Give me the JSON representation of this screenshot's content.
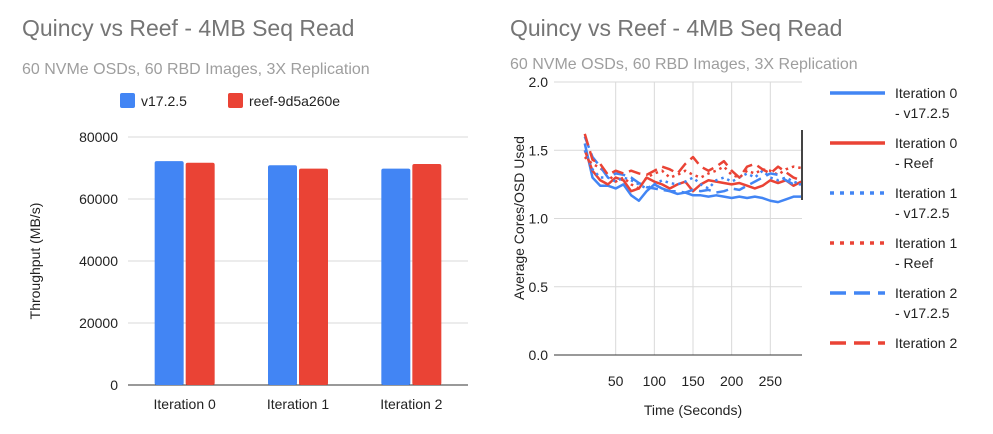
{
  "colors": {
    "v17": "#4285f4",
    "reef": "#ea4335",
    "grid": "#d9d9d9",
    "title": "#757575"
  },
  "chart_data": [
    {
      "type": "bar",
      "title": "Quincy vs Reef - 4MB Seq Read",
      "subtitle": "60 NVMe OSDs, 60 RBD Images, 3X Replication",
      "xlabel": "",
      "ylabel": "Throughput (MB/s)",
      "categories": [
        "Iteration 0",
        "Iteration 1",
        "Iteration 2"
      ],
      "series": [
        {
          "name": "v17.2.5",
          "color": "#4285f4",
          "values": [
            72200,
            70900,
            69800
          ]
        },
        {
          "name": "reef-9d5a260e",
          "color": "#ea4335",
          "values": [
            71700,
            69800,
            71300
          ]
        }
      ],
      "ylim": [
        0,
        80000
      ],
      "yticks": [
        "0",
        "20000",
        "40000",
        "60000",
        "80000"
      ],
      "grid": true,
      "legend": "top"
    },
    {
      "type": "line",
      "title": "Quincy vs Reef - 4MB Seq Read",
      "subtitle": "60 NVMe OSDs, 60 RBD Images, 3X Replication",
      "xlabel": "Time (Seconds)",
      "ylabel": "Average Cores/OSD Used",
      "xlim": [
        9,
        291
      ],
      "ylim": [
        0,
        2.0
      ],
      "xticks": [
        "50",
        "100",
        "150",
        "200",
        "250"
      ],
      "yticks": [
        "0.0",
        "0.5",
        "1.0",
        "1.5",
        "2.0"
      ],
      "grid": true,
      "legend": "right",
      "x": [
        10,
        20,
        30,
        40,
        50,
        60,
        70,
        80,
        90,
        100,
        110,
        120,
        130,
        140,
        150,
        160,
        170,
        180,
        190,
        200,
        210,
        220,
        230,
        240,
        250,
        260,
        270,
        280,
        290
      ],
      "series": [
        {
          "name": "Iteration 0 - v17.2.5",
          "color": "#4285f4",
          "style": "solid",
          "values": [
            1.55,
            1.3,
            1.24,
            1.24,
            1.22,
            1.25,
            1.17,
            1.13,
            1.2,
            1.25,
            1.22,
            1.2,
            1.18,
            1.19,
            1.17,
            1.17,
            1.16,
            1.17,
            1.16,
            1.15,
            1.16,
            1.15,
            1.16,
            1.15,
            1.13,
            1.12,
            1.14,
            1.16,
            1.16
          ]
        },
        {
          "name": "Iteration 0 - Reef",
          "color": "#ea4335",
          "style": "solid",
          "values": [
            1.5,
            1.35,
            1.28,
            1.25,
            1.3,
            1.28,
            1.2,
            1.22,
            1.3,
            1.27,
            1.25,
            1.22,
            1.25,
            1.27,
            1.2,
            1.25,
            1.28,
            1.27,
            1.26,
            1.25,
            1.26,
            1.24,
            1.22,
            1.24,
            1.28,
            1.26,
            1.28,
            1.24,
            1.27
          ]
        },
        {
          "name": "Iteration 1 - v17.2.5",
          "color": "#4285f4",
          "style": "dotted",
          "values": [
            1.5,
            1.36,
            1.3,
            1.3,
            1.27,
            1.3,
            1.28,
            1.25,
            1.22,
            1.25,
            1.28,
            1.26,
            1.25,
            1.27,
            1.3,
            1.25,
            1.22,
            1.28,
            1.3,
            1.27,
            1.3,
            1.33,
            1.3,
            1.35,
            1.3,
            1.28,
            1.3,
            1.27,
            1.25
          ]
        },
        {
          "name": "Iteration 1 - Reef",
          "color": "#ea4335",
          "style": "dotted",
          "values": [
            1.45,
            1.4,
            1.37,
            1.32,
            1.27,
            1.3,
            1.25,
            1.22,
            1.3,
            1.33,
            1.35,
            1.3,
            1.32,
            1.35,
            1.32,
            1.3,
            1.33,
            1.35,
            1.38,
            1.32,
            1.3,
            1.35,
            1.33,
            1.36,
            1.35,
            1.32,
            1.36,
            1.38,
            1.37
          ]
        },
        {
          "name": "Iteration 2 - v17.2.5",
          "color": "#4285f4",
          "style": "dashed",
          "values": [
            1.6,
            1.45,
            1.38,
            1.3,
            1.33,
            1.32,
            1.3,
            1.26,
            1.23,
            1.22,
            1.21,
            1.2,
            1.2,
            1.19,
            1.21,
            1.2,
            1.21,
            1.19,
            1.2,
            1.22,
            1.21,
            1.24,
            1.27,
            1.3,
            1.33,
            1.32,
            1.28,
            1.25,
            1.25
          ]
        },
        {
          "name": "Iteration 2",
          "color": "#ea4335",
          "style": "dashed",
          "values": [
            1.62,
            1.43,
            1.4,
            1.32,
            1.35,
            1.33,
            1.35,
            1.33,
            1.32,
            1.35,
            1.38,
            1.36,
            1.33,
            1.4,
            1.45,
            1.38,
            1.35,
            1.38,
            1.42,
            1.35,
            1.3,
            1.38,
            1.4,
            1.36,
            1.33,
            1.38,
            1.34,
            1.3,
            1.28
          ]
        }
      ],
      "legend_lines": [
        [
          "Iteration 0",
          "- v17.2.5"
        ],
        [
          "Iteration 0",
          "- Reef"
        ],
        [
          "Iteration 1",
          "- v17.2.5"
        ],
        [
          "Iteration 1",
          "- Reef"
        ],
        [
          "Iteration 2",
          "- v17.2.5"
        ],
        [
          "Iteration 2",
          ""
        ]
      ]
    }
  ]
}
